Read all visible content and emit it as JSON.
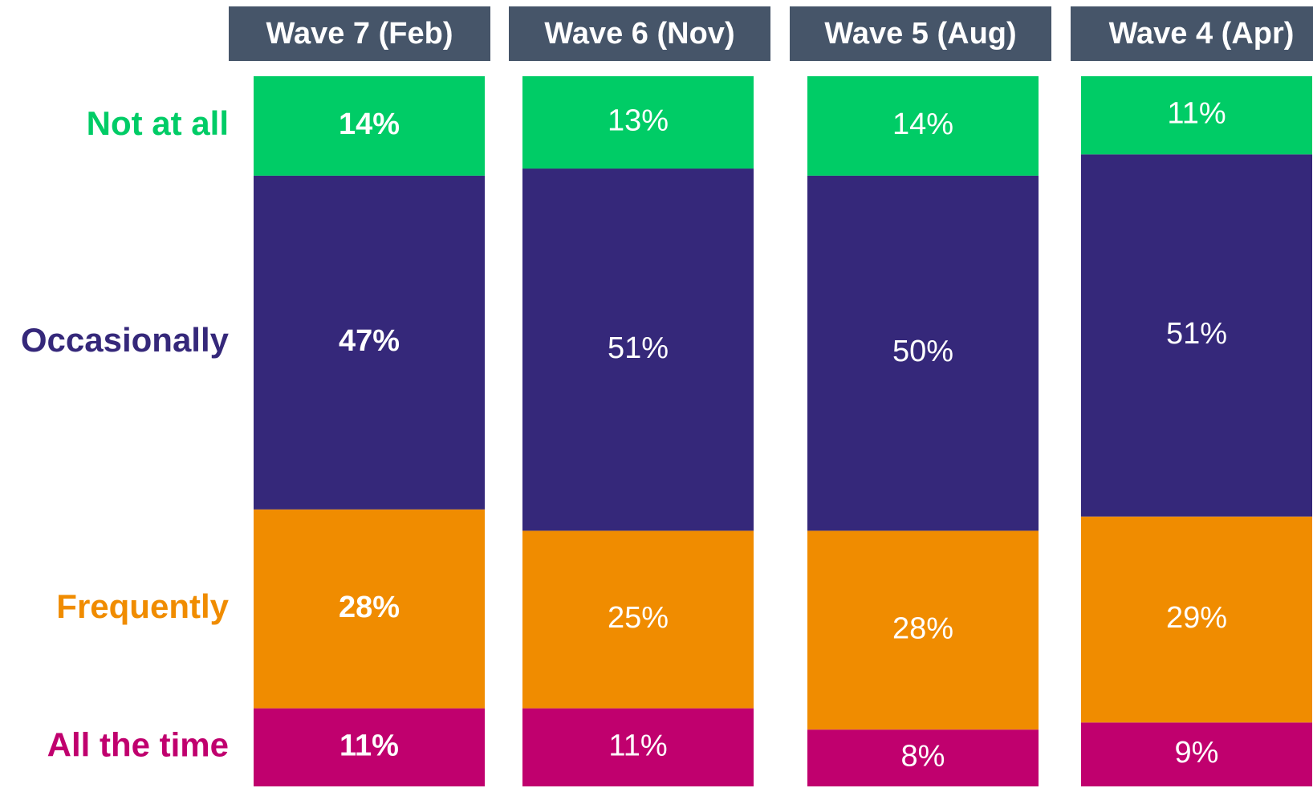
{
  "chart_data": {
    "type": "stacked_bar",
    "categories": [
      "Wave 7 (Feb)",
      "Wave 6 (Nov)",
      "Wave 5 (Aug)",
      "Wave 4 (Apr)"
    ],
    "ylim": [
      0,
      100
    ],
    "series": [
      {
        "name": "All the time",
        "color": "#c0006e",
        "values": [
          11,
          11,
          8,
          9
        ],
        "value_labels": [
          "11%",
          "11%",
          "8%",
          "9%"
        ]
      },
      {
        "name": "Frequently",
        "color": "#f08c00",
        "values": [
          28,
          25,
          28,
          29
        ],
        "value_labels": [
          "28%",
          "25%",
          "28%",
          "29%"
        ]
      },
      {
        "name": "Occasionally",
        "color": "#35287a",
        "values": [
          47,
          51,
          50,
          51
        ],
        "value_labels": [
          "47%",
          "51%",
          "50%",
          "51%"
        ]
      },
      {
        "name": "Not at all",
        "color": "#00cc66",
        "values": [
          14,
          13,
          14,
          11
        ],
        "value_labels": [
          "14%",
          "13%",
          "14%",
          "11%"
        ]
      }
    ]
  }
}
